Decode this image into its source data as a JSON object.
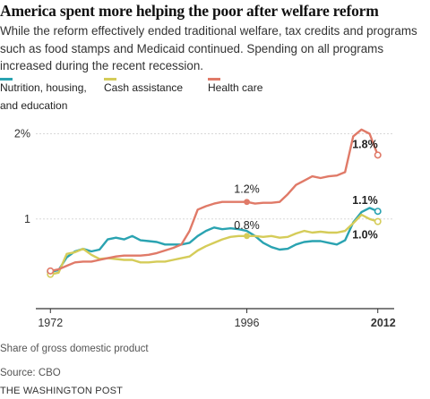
{
  "headline": "America spent more helping the poor after welfare reform",
  "subtitle": "While the reform effectively ended traditional welfare, tax credits and programs such as food stamps and Medicaid continued. Spending on all programs increased during the recent recession.",
  "note": "Share of gross domestic product",
  "source": "Source: CBO",
  "brand": "THE WASHINGTON POST",
  "colors": {
    "nutrition": "#2aa3b1",
    "cash": "#d5cc59",
    "health": "#e07a68",
    "axis": "#333333",
    "grid": "#d8d8d8"
  },
  "chart_data": {
    "type": "line",
    "title": "America spent more helping the poor after welfare reform",
    "ylabel": "Share of gross domestic product",
    "xlim": [
      1970,
      2014
    ],
    "ylim": [
      0,
      2.1
    ],
    "x_ticks": [
      "1972",
      "1996",
      "2012"
    ],
    "y_ticks": [
      {
        "value": 1,
        "label": "1"
      },
      {
        "value": 2,
        "label": "2%"
      }
    ],
    "grid": true,
    "legend_position": "top",
    "series": [
      {
        "name": "Nutrition, housing, and education",
        "color": "#2aa3b1",
        "x": [
          1972,
          1973,
          1974,
          1975,
          1976,
          1977,
          1978,
          1979,
          1980,
          1981,
          1982,
          1983,
          1984,
          1985,
          1986,
          1987,
          1988,
          1989,
          1990,
          1991,
          1992,
          1993,
          1994,
          1995,
          1996,
          1997,
          1998,
          1999,
          2000,
          2001,
          2002,
          2003,
          2004,
          2005,
          2006,
          2007,
          2008,
          2009,
          2010,
          2011,
          2012
        ],
        "y": [
          0.38,
          0.4,
          0.55,
          0.62,
          0.65,
          0.62,
          0.64,
          0.76,
          0.78,
          0.76,
          0.8,
          0.75,
          0.74,
          0.73,
          0.7,
          0.7,
          0.7,
          0.72,
          0.8,
          0.86,
          0.9,
          0.88,
          0.89,
          0.88,
          0.86,
          0.8,
          0.72,
          0.67,
          0.64,
          0.65,
          0.7,
          0.73,
          0.74,
          0.74,
          0.72,
          0.7,
          0.75,
          0.96,
          1.08,
          1.13,
          1.09
        ]
      },
      {
        "name": "Cash assistance",
        "color": "#d5cc59",
        "x": [
          1972,
          1973,
          1974,
          1975,
          1976,
          1977,
          1978,
          1979,
          1980,
          1981,
          1982,
          1983,
          1984,
          1985,
          1986,
          1987,
          1988,
          1989,
          1990,
          1991,
          1992,
          1993,
          1994,
          1995,
          1996,
          1997,
          1998,
          1999,
          2000,
          2001,
          2002,
          2003,
          2004,
          2005,
          2006,
          2007,
          2008,
          2009,
          2010,
          2011,
          2012
        ],
        "y": [
          0.35,
          0.37,
          0.59,
          0.61,
          0.65,
          0.58,
          0.53,
          0.54,
          0.53,
          0.52,
          0.52,
          0.49,
          0.49,
          0.5,
          0.5,
          0.52,
          0.54,
          0.56,
          0.63,
          0.68,
          0.72,
          0.76,
          0.79,
          0.8,
          0.8,
          0.8,
          0.79,
          0.8,
          0.78,
          0.79,
          0.83,
          0.86,
          0.84,
          0.85,
          0.84,
          0.84,
          0.86,
          0.95,
          1.05,
          1.0,
          0.97
        ]
      },
      {
        "name": "Health care",
        "color": "#e07a68",
        "x": [
          1972,
          1973,
          1974,
          1975,
          1976,
          1977,
          1978,
          1979,
          1980,
          1981,
          1982,
          1983,
          1984,
          1985,
          1986,
          1987,
          1988,
          1989,
          1990,
          1991,
          1992,
          1993,
          1994,
          1995,
          1996,
          1997,
          1998,
          1999,
          2000,
          2001,
          2002,
          2003,
          2004,
          2005,
          2006,
          2007,
          2008,
          2009,
          2010,
          2011,
          2012
        ],
        "y": [
          0.39,
          0.41,
          0.45,
          0.49,
          0.5,
          0.5,
          0.52,
          0.54,
          0.56,
          0.57,
          0.57,
          0.57,
          0.58,
          0.6,
          0.63,
          0.66,
          0.7,
          0.86,
          1.11,
          1.15,
          1.18,
          1.2,
          1.2,
          1.2,
          1.2,
          1.18,
          1.19,
          1.19,
          1.2,
          1.29,
          1.4,
          1.45,
          1.5,
          1.48,
          1.5,
          1.51,
          1.55,
          1.97,
          2.05,
          2.0,
          1.75
        ]
      }
    ],
    "annotations": [
      {
        "text": "1.2%",
        "x": 1996,
        "y": 1.2,
        "series": "Health care",
        "bold": false
      },
      {
        "text": "0.8%",
        "x": 1996,
        "y": 0.8,
        "series": "Cash assistance",
        "bold": false
      },
      {
        "text": "1.8%",
        "x": 2012,
        "y": 1.75,
        "series": "Health care",
        "bold": true
      },
      {
        "text": "1.1%",
        "x": 2012,
        "y": 1.09,
        "series": "Nutrition, housing, and education",
        "bold": true
      },
      {
        "text": "1.0%",
        "x": 2012,
        "y": 0.97,
        "series": "Cash assistance",
        "bold": true
      }
    ]
  }
}
